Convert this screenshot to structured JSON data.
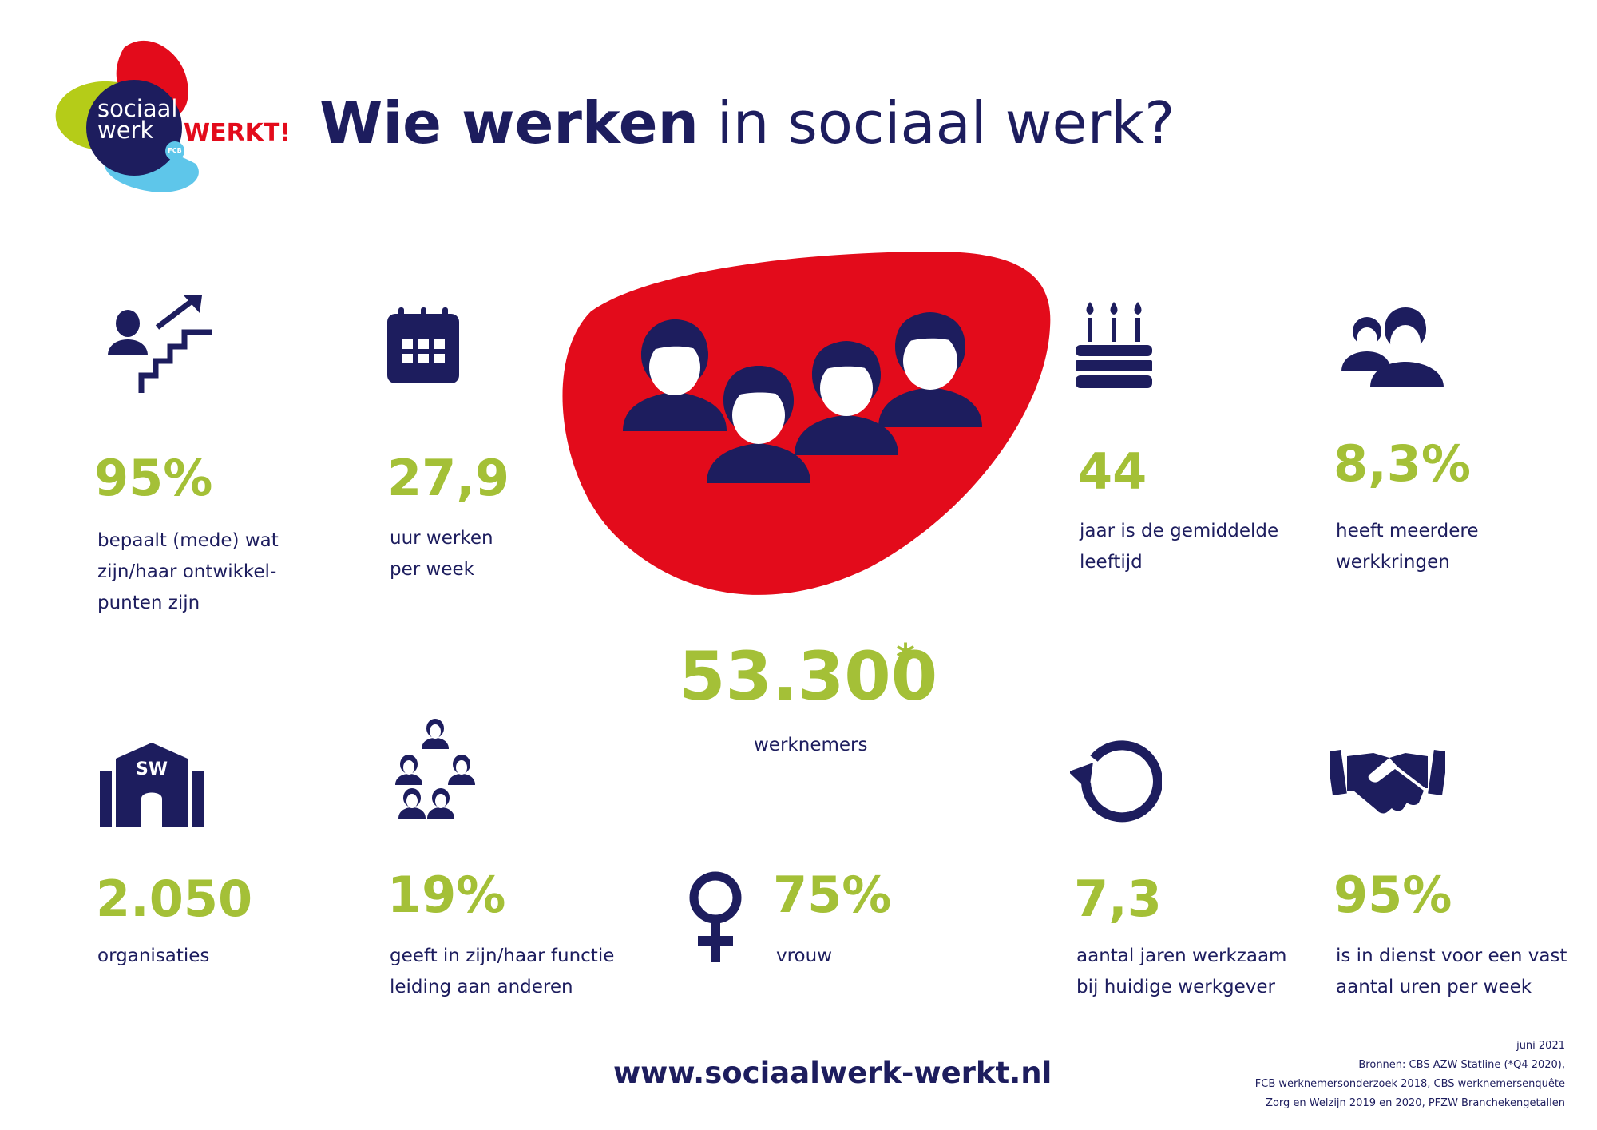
{
  "logo": {
    "line1": "sociaal",
    "line2": "werk",
    "badge": "FCB",
    "tagline": "WERKT!",
    "colors": {
      "red": "#e30b1b",
      "green": "#b5cc18",
      "blue": "#5ec6ea",
      "navy": "#1d1d5e"
    }
  },
  "title": {
    "bold": "Wie werken",
    "light": " in sociaal werk?"
  },
  "stats": {
    "development": {
      "value": "95%",
      "label": "bepaalt (mede) wat\nzijn/haar ontwikkel-\npunten zijn",
      "icon": "career-stairs-icon"
    },
    "hours": {
      "value": "27,9",
      "label": "uur werken\nper week",
      "icon": "calendar-icon"
    },
    "age": {
      "value": "44",
      "label": "jaar is de gemiddelde\nleeftijd",
      "icon": "birthday-cake-icon"
    },
    "multiple_jobs": {
      "value": "8,3%",
      "label": "heeft meerdere\nwerkkringen",
      "icon": "two-people-icon"
    },
    "organisations": {
      "value": "2.050",
      "label": "organisaties",
      "icon": "building-icon",
      "building_text": "SW"
    },
    "leadership": {
      "value": "19%",
      "label": "geeft in zijn/haar functie\nleiding aan anderen",
      "icon": "hierarchy-icon"
    },
    "women": {
      "value": "75%",
      "label": "vrouw",
      "icon": "female-symbol-icon"
    },
    "tenure": {
      "value": "7,3",
      "label": "aantal jaren werkzaam\nbij huidige werkgever",
      "icon": "circular-arrow-icon"
    },
    "fixed_hours": {
      "value": "95%",
      "label": "is in dienst voor een vast\naantal uren per week",
      "icon": "handshake-icon"
    }
  },
  "headline": {
    "value": "53.300",
    "marker": "*",
    "label": "werknemers",
    "icon": "group-of-people-icon"
  },
  "website": "www.sociaalwerk-werkt.nl",
  "footer": {
    "lines": [
      "juni 2021",
      "Bronnen: CBS AZW Statline (*Q4 2020),",
      "FCB werknemersonderzoek 2018, CBS werknemersenquête",
      "Zorg en Welzijn 2019 en 2020, PFZW Branchekengetallen"
    ]
  },
  "colors": {
    "navy": "#1d1d5e",
    "green": "#a4c037",
    "red": "#e30b1b"
  }
}
